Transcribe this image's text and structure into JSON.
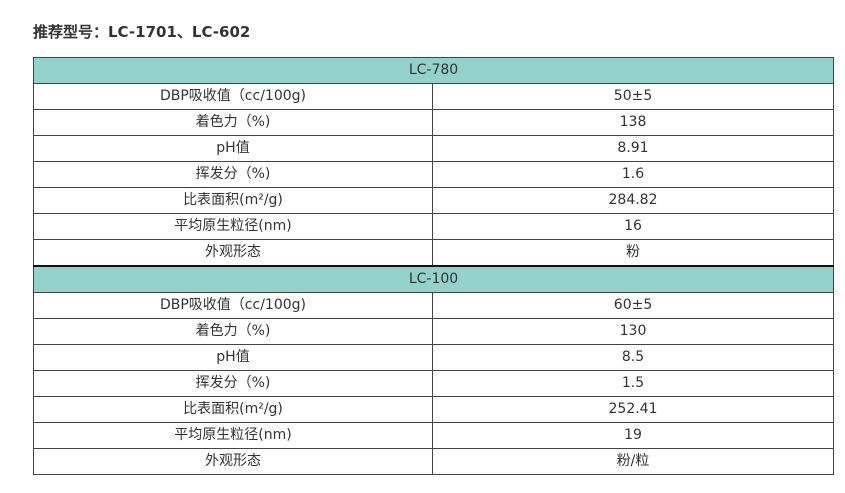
{
  "header": {
    "title": "推荐型号：LC-1701、LC-602"
  },
  "tables": [
    {
      "model": "LC-780",
      "rows": [
        [
          "DBP吸收值（cc/100g)",
          "50±5"
        ],
        [
          "着色力（%)",
          "138"
        ],
        [
          "pH值",
          "8.91"
        ],
        [
          "挥发分（%)",
          "1.6"
        ],
        [
          "比表面积(m²/g)",
          "284.82"
        ],
        [
          "平均原生粒径(nm)",
          "16"
        ],
        [
          "外观形态",
          "粉"
        ]
      ]
    },
    {
      "model": "LC-100",
      "rows": [
        [
          "DBP吸收值（cc/100g)",
          "60±5"
        ],
        [
          "着色力（%)",
          "130"
        ],
        [
          "pH值",
          "8.5"
        ],
        [
          "挥发分（%)",
          "1.5"
        ],
        [
          "比表面积(m²/g)",
          "252.41"
        ],
        [
          "平均原生粒径(nm)",
          "19"
        ],
        [
          "外观形态",
          "粉/粒"
        ]
      ]
    }
  ]
}
